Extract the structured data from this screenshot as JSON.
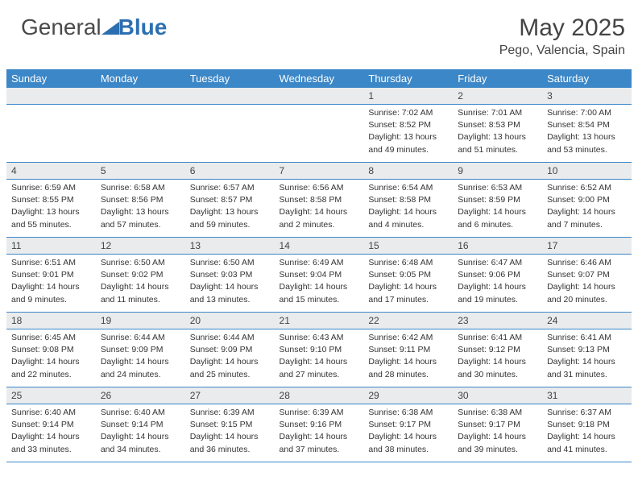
{
  "colors": {
    "header_bg": "#3c87c7",
    "header_text": "#ffffff",
    "daynum_bg": "#e9ebec",
    "cell_border": "#3c87c7",
    "body_text": "#333333",
    "title_text": "#444444",
    "logo_gray": "#4a4a4a",
    "logo_blue": "#2c6fb0"
  },
  "typography": {
    "month_fontsize": 30,
    "location_fontsize": 16,
    "dayheader_fontsize": 13,
    "daynum_fontsize": 12,
    "cell_fontsize": 10.5
  },
  "logo": {
    "part1": "General",
    "part2": "Blue"
  },
  "title": {
    "month": "May 2025",
    "location": "Pego, Valencia, Spain"
  },
  "day_headers": [
    "Sunday",
    "Monday",
    "Tuesday",
    "Wednesday",
    "Thursday",
    "Friday",
    "Saturday"
  ],
  "weeks": [
    {
      "nums": [
        "",
        "",
        "",
        "",
        "1",
        "2",
        "3"
      ],
      "cells": [
        null,
        null,
        null,
        null,
        {
          "sunrise": "Sunrise: 7:02 AM",
          "sunset": "Sunset: 8:52 PM",
          "day1": "Daylight: 13 hours",
          "day2": "and 49 minutes."
        },
        {
          "sunrise": "Sunrise: 7:01 AM",
          "sunset": "Sunset: 8:53 PM",
          "day1": "Daylight: 13 hours",
          "day2": "and 51 minutes."
        },
        {
          "sunrise": "Sunrise: 7:00 AM",
          "sunset": "Sunset: 8:54 PM",
          "day1": "Daylight: 13 hours",
          "day2": "and 53 minutes."
        }
      ]
    },
    {
      "nums": [
        "4",
        "5",
        "6",
        "7",
        "8",
        "9",
        "10"
      ],
      "cells": [
        {
          "sunrise": "Sunrise: 6:59 AM",
          "sunset": "Sunset: 8:55 PM",
          "day1": "Daylight: 13 hours",
          "day2": "and 55 minutes."
        },
        {
          "sunrise": "Sunrise: 6:58 AM",
          "sunset": "Sunset: 8:56 PM",
          "day1": "Daylight: 13 hours",
          "day2": "and 57 minutes."
        },
        {
          "sunrise": "Sunrise: 6:57 AM",
          "sunset": "Sunset: 8:57 PM",
          "day1": "Daylight: 13 hours",
          "day2": "and 59 minutes."
        },
        {
          "sunrise": "Sunrise: 6:56 AM",
          "sunset": "Sunset: 8:58 PM",
          "day1": "Daylight: 14 hours",
          "day2": "and 2 minutes."
        },
        {
          "sunrise": "Sunrise: 6:54 AM",
          "sunset": "Sunset: 8:58 PM",
          "day1": "Daylight: 14 hours",
          "day2": "and 4 minutes."
        },
        {
          "sunrise": "Sunrise: 6:53 AM",
          "sunset": "Sunset: 8:59 PM",
          "day1": "Daylight: 14 hours",
          "day2": "and 6 minutes."
        },
        {
          "sunrise": "Sunrise: 6:52 AM",
          "sunset": "Sunset: 9:00 PM",
          "day1": "Daylight: 14 hours",
          "day2": "and 7 minutes."
        }
      ]
    },
    {
      "nums": [
        "11",
        "12",
        "13",
        "14",
        "15",
        "16",
        "17"
      ],
      "cells": [
        {
          "sunrise": "Sunrise: 6:51 AM",
          "sunset": "Sunset: 9:01 PM",
          "day1": "Daylight: 14 hours",
          "day2": "and 9 minutes."
        },
        {
          "sunrise": "Sunrise: 6:50 AM",
          "sunset": "Sunset: 9:02 PM",
          "day1": "Daylight: 14 hours",
          "day2": "and 11 minutes."
        },
        {
          "sunrise": "Sunrise: 6:50 AM",
          "sunset": "Sunset: 9:03 PM",
          "day1": "Daylight: 14 hours",
          "day2": "and 13 minutes."
        },
        {
          "sunrise": "Sunrise: 6:49 AM",
          "sunset": "Sunset: 9:04 PM",
          "day1": "Daylight: 14 hours",
          "day2": "and 15 minutes."
        },
        {
          "sunrise": "Sunrise: 6:48 AM",
          "sunset": "Sunset: 9:05 PM",
          "day1": "Daylight: 14 hours",
          "day2": "and 17 minutes."
        },
        {
          "sunrise": "Sunrise: 6:47 AM",
          "sunset": "Sunset: 9:06 PM",
          "day1": "Daylight: 14 hours",
          "day2": "and 19 minutes."
        },
        {
          "sunrise": "Sunrise: 6:46 AM",
          "sunset": "Sunset: 9:07 PM",
          "day1": "Daylight: 14 hours",
          "day2": "and 20 minutes."
        }
      ]
    },
    {
      "nums": [
        "18",
        "19",
        "20",
        "21",
        "22",
        "23",
        "24"
      ],
      "cells": [
        {
          "sunrise": "Sunrise: 6:45 AM",
          "sunset": "Sunset: 9:08 PM",
          "day1": "Daylight: 14 hours",
          "day2": "and 22 minutes."
        },
        {
          "sunrise": "Sunrise: 6:44 AM",
          "sunset": "Sunset: 9:09 PM",
          "day1": "Daylight: 14 hours",
          "day2": "and 24 minutes."
        },
        {
          "sunrise": "Sunrise: 6:44 AM",
          "sunset": "Sunset: 9:09 PM",
          "day1": "Daylight: 14 hours",
          "day2": "and 25 minutes."
        },
        {
          "sunrise": "Sunrise: 6:43 AM",
          "sunset": "Sunset: 9:10 PM",
          "day1": "Daylight: 14 hours",
          "day2": "and 27 minutes."
        },
        {
          "sunrise": "Sunrise: 6:42 AM",
          "sunset": "Sunset: 9:11 PM",
          "day1": "Daylight: 14 hours",
          "day2": "and 28 minutes."
        },
        {
          "sunrise": "Sunrise: 6:41 AM",
          "sunset": "Sunset: 9:12 PM",
          "day1": "Daylight: 14 hours",
          "day2": "and 30 minutes."
        },
        {
          "sunrise": "Sunrise: 6:41 AM",
          "sunset": "Sunset: 9:13 PM",
          "day1": "Daylight: 14 hours",
          "day2": "and 31 minutes."
        }
      ]
    },
    {
      "nums": [
        "25",
        "26",
        "27",
        "28",
        "29",
        "30",
        "31"
      ],
      "cells": [
        {
          "sunrise": "Sunrise: 6:40 AM",
          "sunset": "Sunset: 9:14 PM",
          "day1": "Daylight: 14 hours",
          "day2": "and 33 minutes."
        },
        {
          "sunrise": "Sunrise: 6:40 AM",
          "sunset": "Sunset: 9:14 PM",
          "day1": "Daylight: 14 hours",
          "day2": "and 34 minutes."
        },
        {
          "sunrise": "Sunrise: 6:39 AM",
          "sunset": "Sunset: 9:15 PM",
          "day1": "Daylight: 14 hours",
          "day2": "and 36 minutes."
        },
        {
          "sunrise": "Sunrise: 6:39 AM",
          "sunset": "Sunset: 9:16 PM",
          "day1": "Daylight: 14 hours",
          "day2": "and 37 minutes."
        },
        {
          "sunrise": "Sunrise: 6:38 AM",
          "sunset": "Sunset: 9:17 PM",
          "day1": "Daylight: 14 hours",
          "day2": "and 38 minutes."
        },
        {
          "sunrise": "Sunrise: 6:38 AM",
          "sunset": "Sunset: 9:17 PM",
          "day1": "Daylight: 14 hours",
          "day2": "and 39 minutes."
        },
        {
          "sunrise": "Sunrise: 6:37 AM",
          "sunset": "Sunset: 9:18 PM",
          "day1": "Daylight: 14 hours",
          "day2": "and 41 minutes."
        }
      ]
    }
  ]
}
